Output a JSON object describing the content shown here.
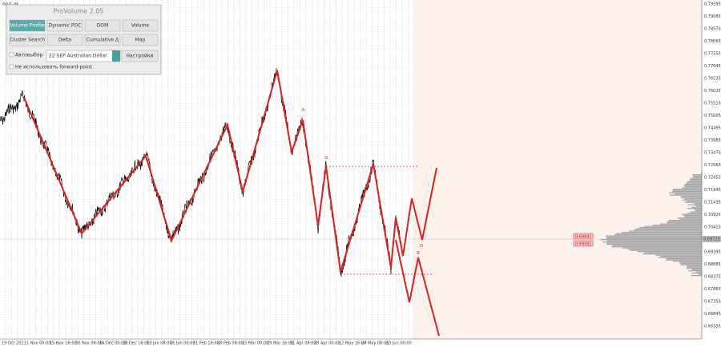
{
  "symbol": "6AU1,H4",
  "panel": {
    "title": "ProVolume 2.05",
    "buttons": [
      "Volume Profile",
      "Dynamic POC",
      "DOM",
      "Volume",
      "Cluster Search",
      "Delta",
      "Cumulative Δ",
      "Map"
    ],
    "auto_select": "Автовыбор",
    "instrument": "22 SEP Australian Dollar",
    "settings": "Настройки",
    "forward_point": "Не использовать forward-point"
  },
  "price_axis": [
    "0.79595",
    "0.79085",
    "0.78575",
    "0.78065",
    "0.77555",
    "0.77045",
    "0.76535",
    "0.76025",
    "0.75515",
    "0.75005",
    "0.74495",
    "0.73985",
    "0.73475",
    "0.72965",
    "0.72455",
    "0.71945",
    "0.71435",
    "0.70925",
    "0.70415",
    "0.69905",
    "0.69395",
    "0.68885",
    "0.68375",
    "0.67865",
    "0.67355",
    "0.66845",
    "0.66335"
  ],
  "current_price": "0.69723",
  "level_labels": [
    "0.69842",
    "0.69501"
  ],
  "time_axis": [
    "19 Oct 2021",
    "1 Nov 00:00",
    "15 Nov 16:00",
    "30 Nov 08:00",
    "14 Dec 00:00",
    "28 Dec 16:00",
    "13 Jan 08:00",
    "26 Jan 00:00",
    "11 Feb 16:00",
    "28 Feb 08:00",
    "15 Mar 00:00",
    "29 Mar 16:00",
    "11 Apr 08:00",
    "28 Apr 00:00",
    "12 May 16:00",
    "27 May 08:00",
    "13 Jun 00:00"
  ],
  "wave_labels": [
    "a",
    "a",
    "o",
    "в"
  ]
}
